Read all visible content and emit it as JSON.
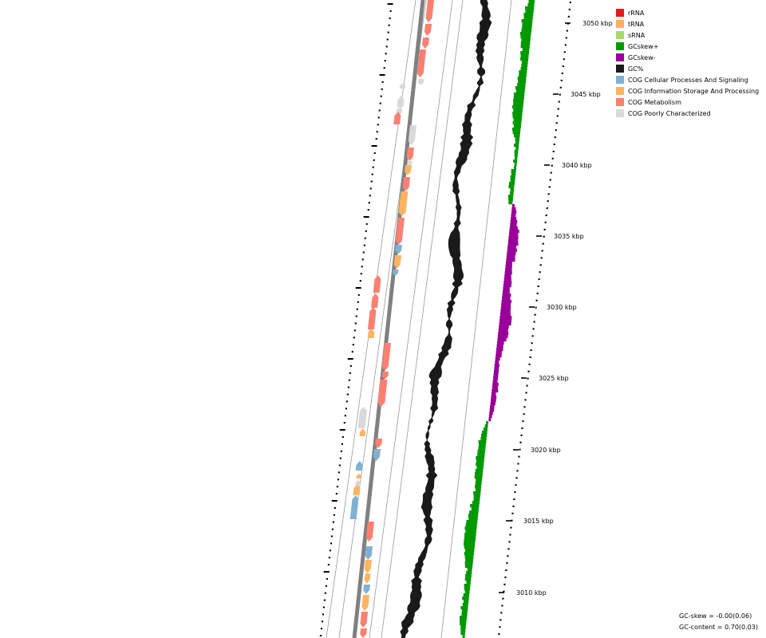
{
  "legend": [
    {
      "label": "rRNA",
      "color": "#e31a1c"
    },
    {
      "label": "tRNA",
      "color": "#fdae61"
    },
    {
      "label": "sRNA",
      "color": "#a6d96a"
    },
    {
      "label": "GCskew+",
      "color": "#009900"
    },
    {
      "label": "GCskew-",
      "color": "#990099"
    },
    {
      "label": "GC%",
      "color": "#1a1a1a"
    },
    {
      "label": "COG Cellular Processes And Signaling",
      "color": "#80b1d3"
    },
    {
      "label": "COG Information Storage And Processing",
      "color": "#fdb462"
    },
    {
      "label": "COG Metabolism",
      "color": "#fb8072"
    },
    {
      "label": "COG Poorly Characterized",
      "color": "#d9d9d9"
    }
  ],
  "ticks": [
    "3010 kbp",
    "3015 kbp",
    "3020 kbp",
    "3025 kbp",
    "3030 kbp",
    "3035 kbp",
    "3040 kbp",
    "3045 kbp",
    "3050 kbp"
  ],
  "stats": {
    "gc_skew": "GC-skew = -0.00(0.06)",
    "gc_content": "GC-content = 0.70(0.03)"
  }
}
